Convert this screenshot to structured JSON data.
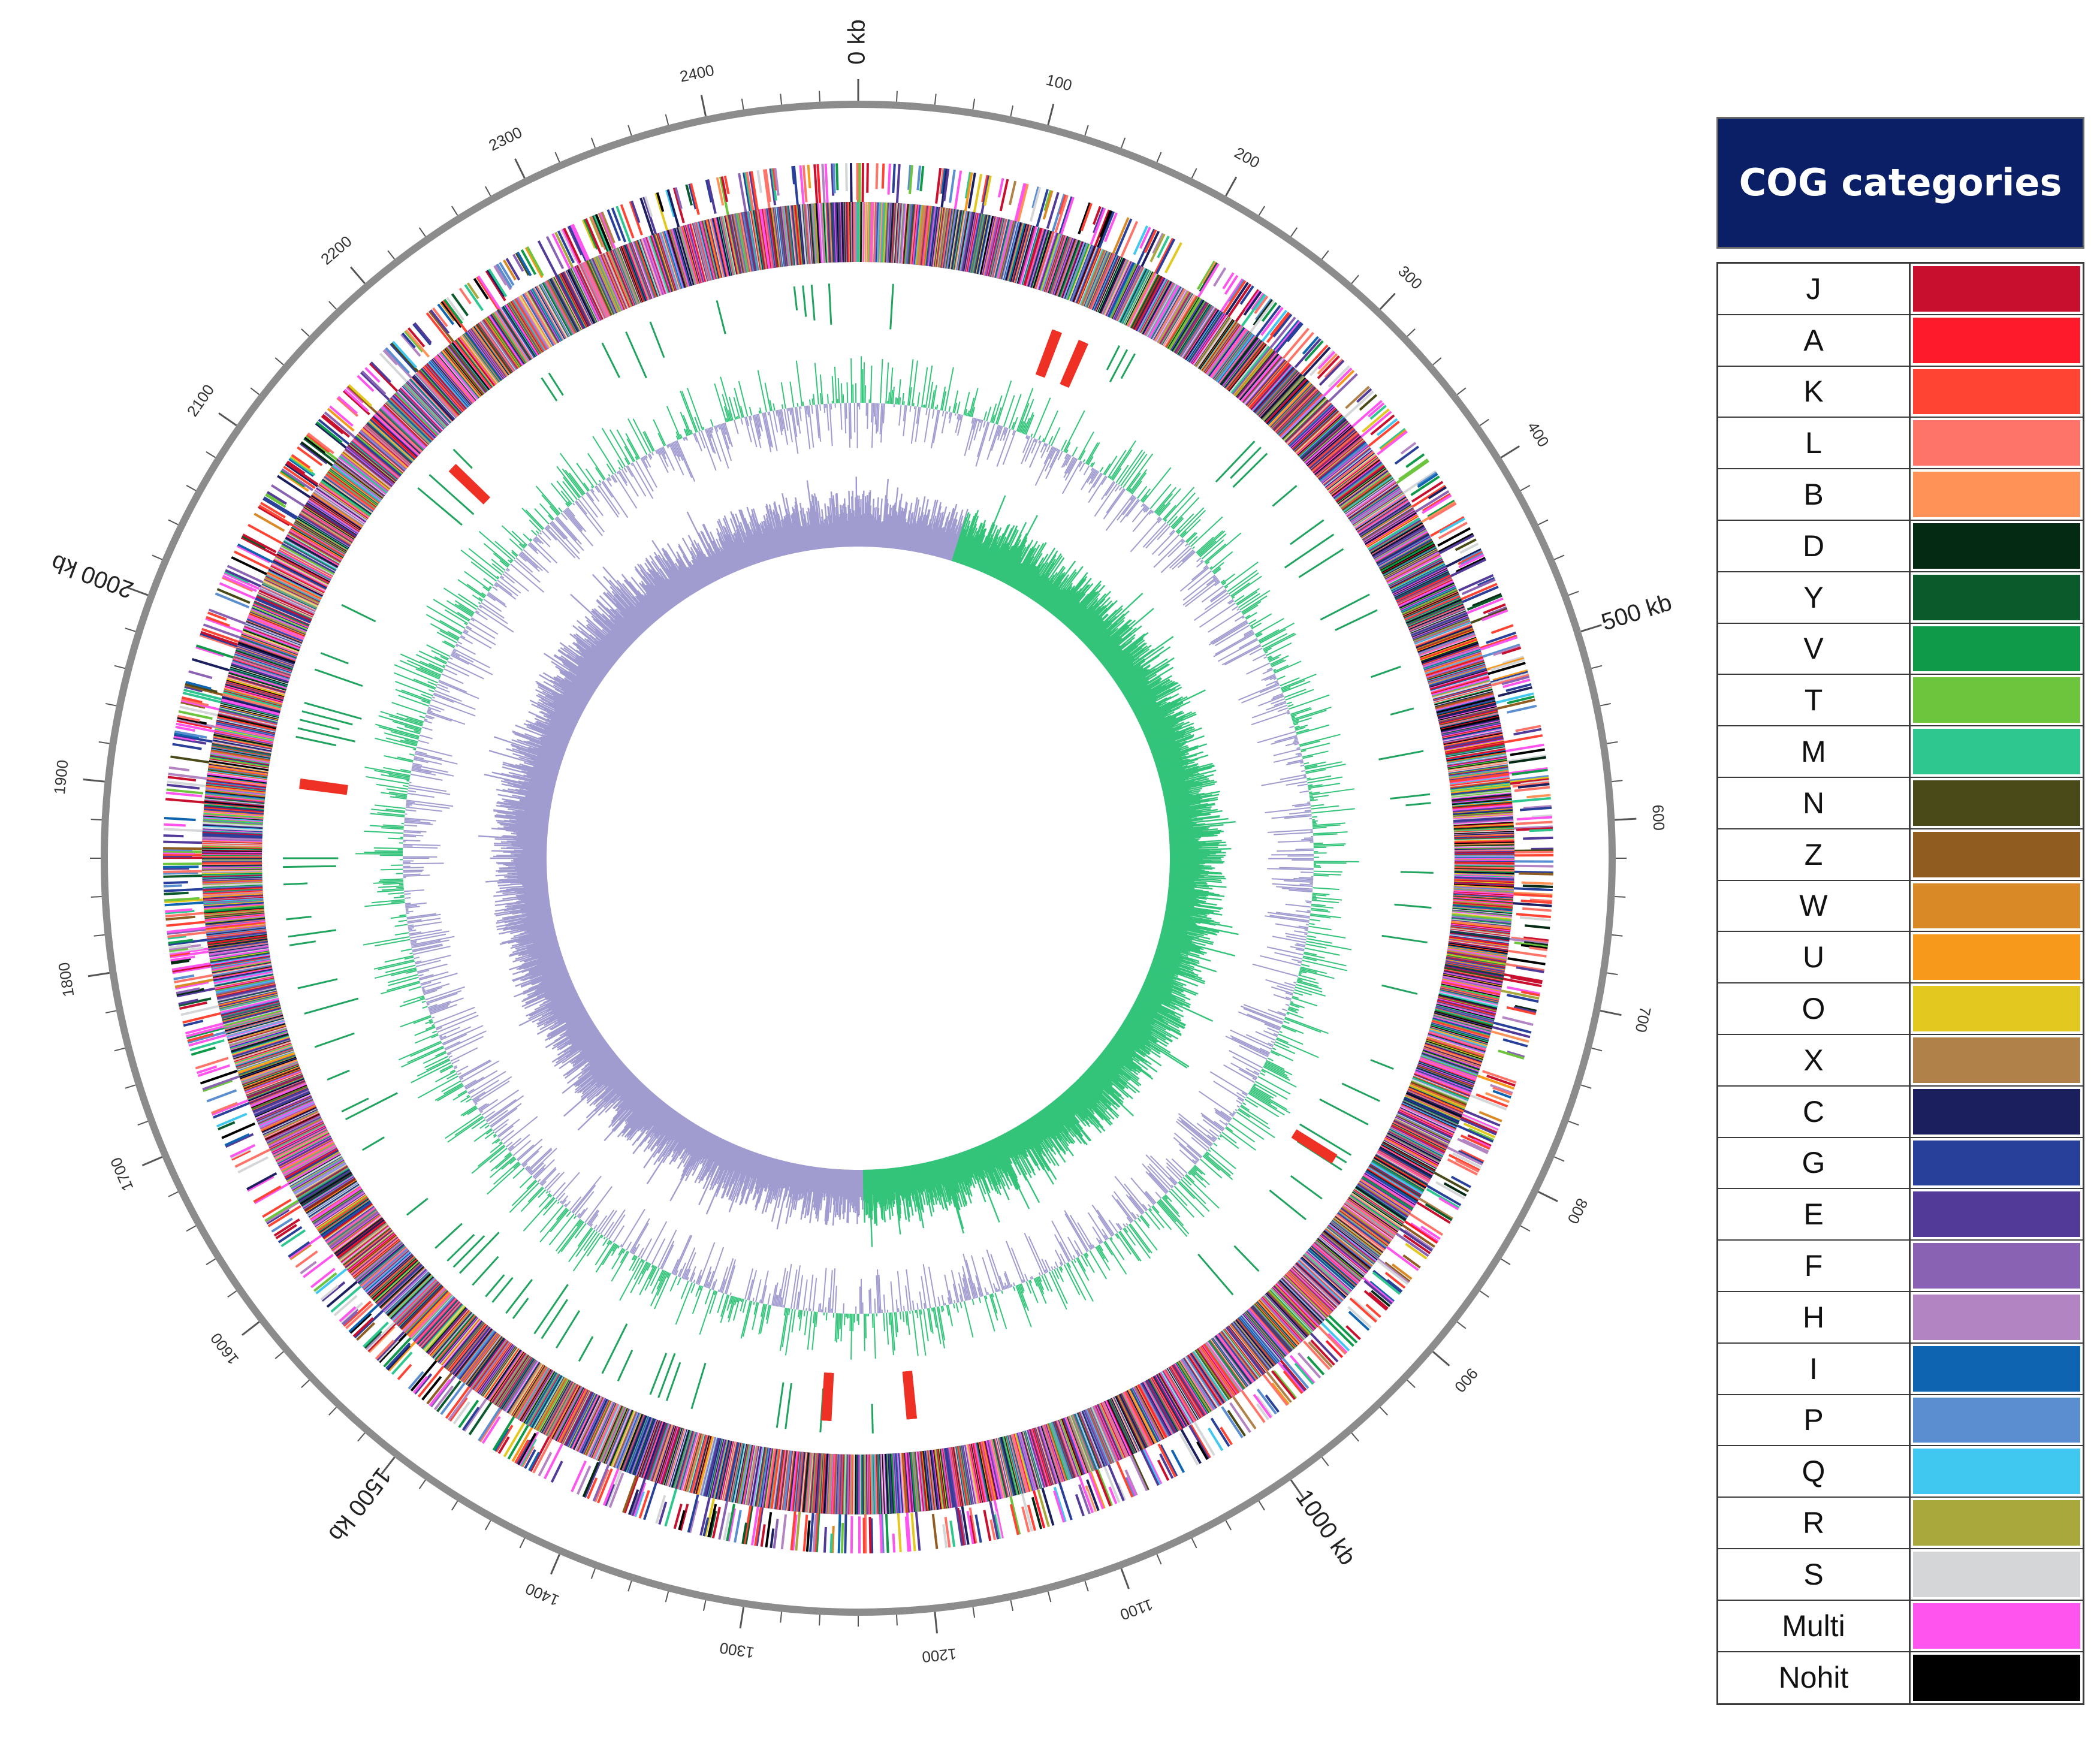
{
  "diagram": {
    "type": "circular-genome-map",
    "genome_length_kb": 2480,
    "kb_labels": [
      {
        "kb": 0,
        "text": "0 kb"
      },
      {
        "kb": 500,
        "text": "500 kb"
      },
      {
        "kb": 1000,
        "text": "1000 kb"
      },
      {
        "kb": 1500,
        "text": "1500 kb"
      },
      {
        "kb": 2000,
        "text": "2000 kb"
      }
    ],
    "tick_labels": [
      {
        "kb": 100,
        "text": "100"
      },
      {
        "kb": 200,
        "text": "200"
      },
      {
        "kb": 300,
        "text": "300"
      },
      {
        "kb": 400,
        "text": "400"
      },
      {
        "kb": 600,
        "text": "600"
      },
      {
        "kb": 700,
        "text": "700"
      },
      {
        "kb": 800,
        "text": "800"
      },
      {
        "kb": 900,
        "text": "900"
      },
      {
        "kb": 1100,
        "text": "1100"
      },
      {
        "kb": 1200,
        "text": "1200"
      },
      {
        "kb": 1300,
        "text": "1300"
      },
      {
        "kb": 1400,
        "text": "1400"
      },
      {
        "kb": 1600,
        "text": "1600"
      },
      {
        "kb": 1700,
        "text": "1700"
      },
      {
        "kb": 1800,
        "text": "1800"
      },
      {
        "kb": 1900,
        "text": "1900"
      },
      {
        "kb": 2100,
        "text": "2100"
      },
      {
        "kb": 2200,
        "text": "2200"
      },
      {
        "kb": 2300,
        "text": "2300"
      },
      {
        "kb": 2400,
        "text": "2400"
      }
    ],
    "tracks": [
      "forward-strand CDS",
      "reverse-strand CDS",
      "rRNA/tRNA",
      "GC content",
      "GC skew"
    ],
    "rrna_loci_kb": [
      140,
      160,
      2160,
      1910,
      1200,
      1260,
      840
    ],
    "track_colors": {
      "gc_positive": "#33c47a",
      "gc_negative": "#a19cd0",
      "rrna": "#ee3124",
      "trna": "#1fa35e",
      "backbone": "#8c8c8c"
    }
  },
  "legend": {
    "title": "COG categories",
    "items": [
      {
        "code": "J",
        "color": "#c8102e"
      },
      {
        "code": "A",
        "color": "#ff1a2b"
      },
      {
        "code": "K",
        "color": "#ff4433"
      },
      {
        "code": "L",
        "color": "#ff7468"
      },
      {
        "code": "B",
        "color": "#ff9256"
      },
      {
        "code": "D",
        "color": "#052a14"
      },
      {
        "code": "Y",
        "color": "#0a5a2c"
      },
      {
        "code": "V",
        "color": "#0e9a48"
      },
      {
        "code": "T",
        "color": "#6cc53d"
      },
      {
        "code": "M",
        "color": "#2ec790"
      },
      {
        "code": "N",
        "color": "#4a4a18"
      },
      {
        "code": "Z",
        "color": "#915c1f"
      },
      {
        "code": "W",
        "color": "#d98a26"
      },
      {
        "code": "U",
        "color": "#f79a1c"
      },
      {
        "code": "O",
        "color": "#e3c820"
      },
      {
        "code": "X",
        "color": "#b08148"
      },
      {
        "code": "C",
        "color": "#1b1f5e"
      },
      {
        "code": "G",
        "color": "#28409a"
      },
      {
        "code": "E",
        "color": "#523a98"
      },
      {
        "code": "F",
        "color": "#8a62b3"
      },
      {
        "code": "H",
        "color": "#b384c2"
      },
      {
        "code": "I",
        "color": "#0f64b2"
      },
      {
        "code": "P",
        "color": "#5a8ed0"
      },
      {
        "code": "Q",
        "color": "#40c8f0"
      },
      {
        "code": "R",
        "color": "#a8a83c"
      },
      {
        "code": "S",
        "color": "#d4d6d8"
      },
      {
        "code": "Multi",
        "color": "#ff55ee"
      },
      {
        "code": "Nohit",
        "color": "#000000"
      }
    ]
  }
}
